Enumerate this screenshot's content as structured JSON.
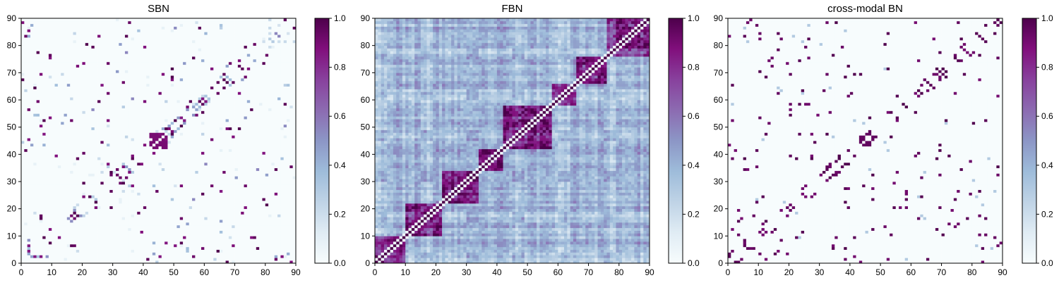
{
  "figure": {
    "charts": [
      {
        "type": "heatmap",
        "title": "SBN",
        "xlim": [
          0,
          90
        ],
        "ylim": [
          0,
          90
        ],
        "x_ticks": [
          "0",
          "10",
          "20",
          "30",
          "40",
          "50",
          "60",
          "70",
          "80",
          "90"
        ],
        "y_ticks": [
          "0",
          "10",
          "20",
          "30",
          "40",
          "50",
          "60",
          "70",
          "80",
          "90"
        ],
        "colorbar_ticks": [
          "0.0",
          "0.2",
          "0.4",
          "0.6",
          "0.8",
          "1.0"
        ],
        "colorbar_range": [
          0,
          1
        ],
        "colormap": "BuPu",
        "colormap_stops": [
          "#f7fcfd",
          "#e0ecf4",
          "#bfd3e6",
          "#9ebcda",
          "#8c96c6",
          "#8c6bb1",
          "#88419d",
          "#810f7c",
          "#4d004b"
        ],
        "matrix_size": 90,
        "values_note": "sparse structural network (90x90 ROI)"
      },
      {
        "type": "heatmap",
        "title": "FBN",
        "xlim": [
          0,
          90
        ],
        "ylim": [
          0,
          90
        ],
        "x_ticks": [
          "0",
          "10",
          "20",
          "30",
          "40",
          "50",
          "60",
          "70",
          "80",
          "90"
        ],
        "y_ticks": [
          "0",
          "10",
          "20",
          "30",
          "40",
          "50",
          "60",
          "70",
          "80",
          "90"
        ],
        "colorbar_ticks": [
          "0.0",
          "0.2",
          "0.4",
          "0.6",
          "0.8",
          "1.0"
        ],
        "colorbar_range": [
          0,
          1
        ],
        "colormap": "BuPu",
        "colormap_stops": [
          "#f7fcfd",
          "#e0ecf4",
          "#bfd3e6",
          "#9ebcda",
          "#8c96c6",
          "#8c6bb1",
          "#88419d",
          "#810f7c",
          "#4d004b"
        ],
        "matrix_size": 90,
        "values_note": "dense functional network with block structure"
      },
      {
        "type": "heatmap",
        "title": "cross-modal BN",
        "xlim": [
          0,
          90
        ],
        "ylim": [
          0,
          90
        ],
        "x_ticks": [
          "0",
          "10",
          "20",
          "30",
          "40",
          "50",
          "60",
          "70",
          "80",
          "90"
        ],
        "y_ticks": [
          "0",
          "10",
          "20",
          "30",
          "40",
          "50",
          "60",
          "70",
          "80",
          "90"
        ],
        "colorbar_ticks": [
          "0.0",
          "0.2",
          "0.4",
          "0.6",
          "0.8",
          "1.0"
        ],
        "colorbar_range": [
          0,
          1
        ],
        "colormap": "BuPu",
        "colormap_stops": [
          "#f7fcfd",
          "#e0ecf4",
          "#bfd3e6",
          "#9ebcda",
          "#8c96c6",
          "#8c6bb1",
          "#88419d",
          "#810f7c",
          "#4d004b"
        ],
        "matrix_size": 90,
        "values_note": "sparse binary-like cross-modal network"
      }
    ]
  },
  "chart_data": [
    {
      "type": "heatmap",
      "title": "SBN",
      "xlim": [
        0,
        90
      ],
      "ylim": [
        0,
        90
      ],
      "value_range": [
        0,
        1
      ],
      "grid": false
    },
    {
      "type": "heatmap",
      "title": "FBN",
      "xlim": [
        0,
        90
      ],
      "ylim": [
        0,
        90
      ],
      "value_range": [
        0,
        1
      ],
      "grid": false
    },
    {
      "type": "heatmap",
      "title": "cross-modal BN",
      "xlim": [
        0,
        90
      ],
      "ylim": [
        0,
        90
      ],
      "value_range": [
        0,
        1
      ],
      "grid": false
    }
  ]
}
